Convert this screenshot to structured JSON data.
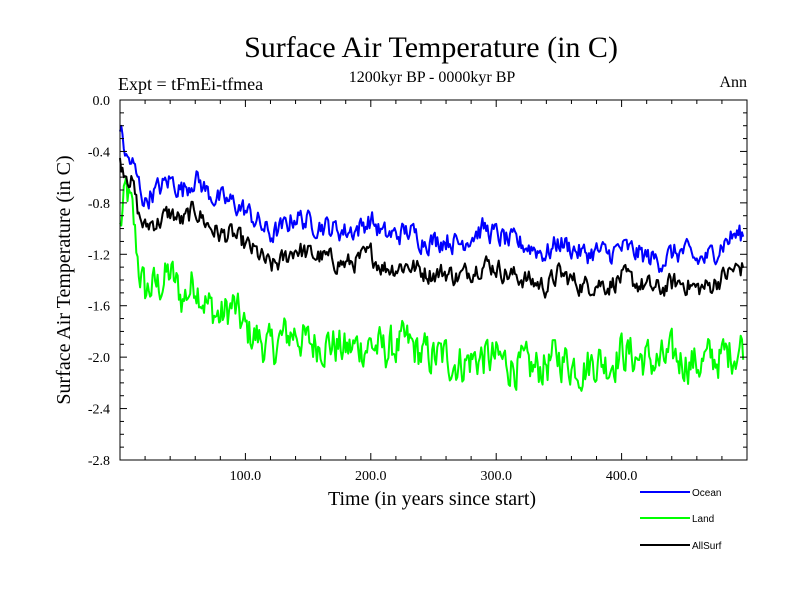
{
  "chart_data": {
    "type": "line",
    "title": "Surface Air Temperature (in C)",
    "subtitle": "1200kyr BP - 0000kyr BP",
    "experiment_label": "Expt = tFmEi-tfmea",
    "period_label": "Ann",
    "xlabel": "Time (in years since start)",
    "ylabel": "Surface Air Temperature (in C)",
    "xlim": [
      0,
      500
    ],
    "ylim": [
      -2.8,
      0.0
    ],
    "x_ticks": [
      100,
      200,
      300,
      400
    ],
    "x_tick_labels": [
      "100.0",
      "200.0",
      "300.0",
      "400.0"
    ],
    "y_ticks": [
      0.0,
      -0.4,
      -0.8,
      -1.2,
      -1.6,
      -2.0,
      -2.4,
      -2.8
    ],
    "y_tick_labels": [
      "0.0",
      "-0.4",
      "-0.8",
      "-1.2",
      "-1.6",
      "-2.0",
      "-2.4",
      "-2.8"
    ],
    "grid": false,
    "legend_position": "bottom-right",
    "series": [
      {
        "name": "Ocean",
        "color": "#0000ff",
        "x": [
          0,
          5,
          10,
          15,
          20,
          25,
          30,
          40,
          50,
          60,
          70,
          80,
          90,
          100,
          110,
          120,
          130,
          140,
          150,
          160,
          170,
          180,
          190,
          200,
          210,
          220,
          230,
          240,
          250,
          260,
          270,
          280,
          290,
          300,
          310,
          320,
          330,
          340,
          350,
          360,
          370,
          380,
          390,
          400,
          410,
          420,
          430,
          440,
          450,
          460,
          470,
          480,
          490,
          497
        ],
        "values": [
          -0.2,
          -0.45,
          -0.5,
          -0.65,
          -0.8,
          -0.72,
          -0.7,
          -0.62,
          -0.7,
          -0.6,
          -0.72,
          -0.78,
          -0.8,
          -0.86,
          -0.95,
          -1.05,
          -1.0,
          -0.9,
          -0.95,
          -0.97,
          -1.0,
          -1.02,
          -1.0,
          -0.93,
          -1.05,
          -1.05,
          -1.02,
          -1.08,
          -1.1,
          -1.08,
          -1.12,
          -1.05,
          -1.0,
          -1.05,
          -1.1,
          -1.12,
          -1.15,
          -1.2,
          -1.1,
          -1.15,
          -1.2,
          -1.18,
          -1.2,
          -1.15,
          -1.18,
          -1.22,
          -1.25,
          -1.2,
          -1.18,
          -1.25,
          -1.22,
          -1.12,
          -1.05,
          -1.05
        ]
      },
      {
        "name": "Land",
        "color": "#00ff00",
        "x": [
          0,
          5,
          10,
          15,
          20,
          25,
          30,
          40,
          50,
          60,
          70,
          80,
          90,
          100,
          110,
          120,
          130,
          140,
          150,
          160,
          170,
          180,
          190,
          200,
          210,
          220,
          230,
          240,
          250,
          260,
          270,
          280,
          290,
          300,
          310,
          320,
          330,
          340,
          350,
          360,
          370,
          380,
          390,
          400,
          410,
          420,
          430,
          440,
          450,
          460,
          470,
          480,
          490,
          497
        ],
        "values": [
          -1.0,
          -0.7,
          -0.9,
          -1.3,
          -1.5,
          -1.45,
          -1.45,
          -1.35,
          -1.55,
          -1.4,
          -1.6,
          -1.7,
          -1.6,
          -1.8,
          -1.85,
          -1.95,
          -1.85,
          -1.8,
          -1.9,
          -1.88,
          -1.9,
          -1.95,
          -1.92,
          -1.9,
          -1.95,
          -1.92,
          -1.9,
          -1.98,
          -2.0,
          -2.0,
          -2.05,
          -2.02,
          -2.0,
          -2.02,
          -2.05,
          -2.08,
          -2.1,
          -2.05,
          -2.0,
          -2.05,
          -2.08,
          -2.02,
          -2.05,
          -1.95,
          -2.0,
          -2.02,
          -2.05,
          -2.0,
          -2.02,
          -2.05,
          -2.02,
          -2.0,
          -1.95,
          -1.9
        ]
      },
      {
        "name": "AllSurf",
        "color": "#000000",
        "x": [
          0,
          5,
          10,
          15,
          20,
          25,
          30,
          40,
          50,
          60,
          70,
          80,
          90,
          100,
          110,
          120,
          130,
          140,
          150,
          160,
          170,
          180,
          190,
          200,
          210,
          220,
          230,
          240,
          250,
          260,
          270,
          280,
          290,
          300,
          310,
          320,
          330,
          340,
          350,
          360,
          370,
          380,
          390,
          400,
          410,
          420,
          430,
          440,
          450,
          460,
          470,
          480,
          490,
          497
        ],
        "values": [
          -0.5,
          -0.55,
          -0.65,
          -0.9,
          -1.0,
          -0.95,
          -0.95,
          -0.88,
          -0.95,
          -0.85,
          -0.97,
          -1.05,
          -1.05,
          -1.13,
          -1.2,
          -1.3,
          -1.25,
          -1.15,
          -1.2,
          -1.22,
          -1.25,
          -1.28,
          -1.25,
          -1.2,
          -1.3,
          -1.3,
          -1.28,
          -1.33,
          -1.35,
          -1.34,
          -1.38,
          -1.32,
          -1.27,
          -1.3,
          -1.36,
          -1.38,
          -1.42,
          -1.45,
          -1.35,
          -1.4,
          -1.45,
          -1.42,
          -1.44,
          -1.38,
          -1.42,
          -1.45,
          -1.48,
          -1.43,
          -1.42,
          -1.47,
          -1.45,
          -1.38,
          -1.32,
          -1.3
        ]
      }
    ]
  }
}
